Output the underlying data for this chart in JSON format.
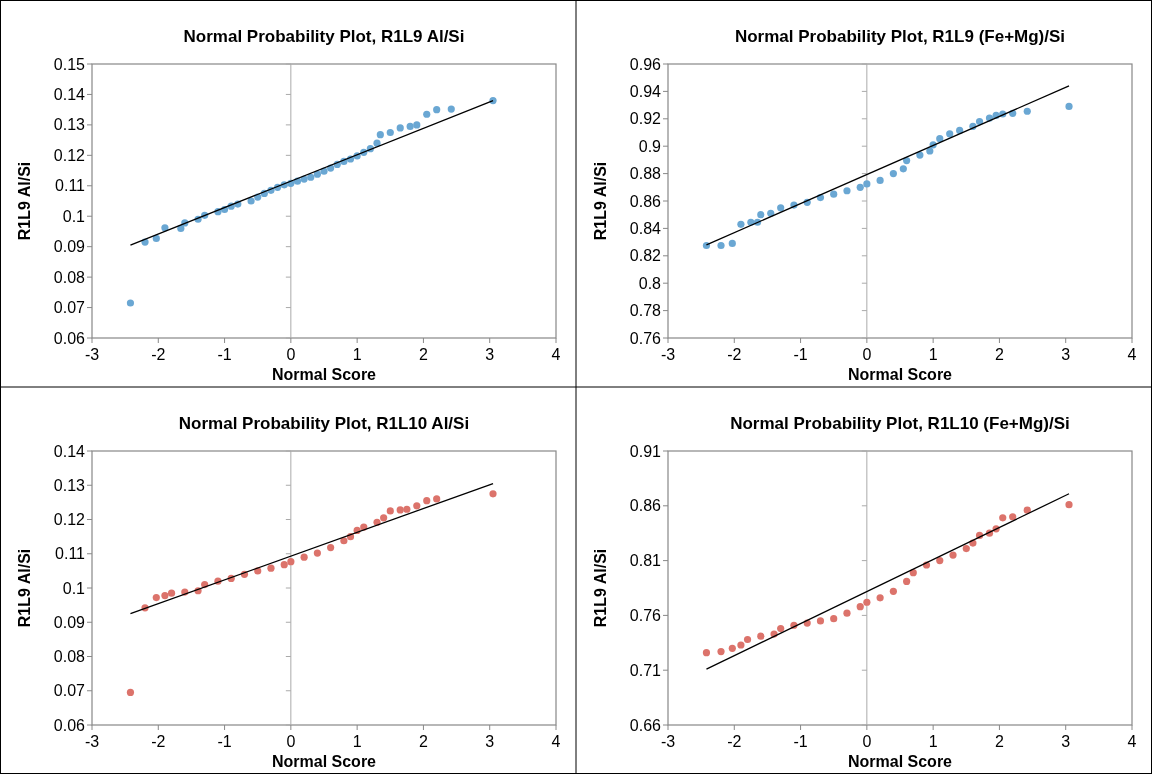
{
  "chart_data": [
    {
      "type": "scatter",
      "title": "Normal Probability Plot, R1L9 Al/Si",
      "xlabel": "Normal Score",
      "ylabel": "R1L9 Al/Si",
      "xlim": [
        -3,
        4
      ],
      "xticks": [
        -3,
        -2,
        -1,
        0,
        1,
        2,
        3,
        4
      ],
      "ylim": [
        0.06,
        0.15
      ],
      "yticks": [
        0.06,
        0.07,
        0.08,
        0.09,
        0.1,
        0.11,
        0.12,
        0.13,
        0.14,
        0.15
      ],
      "series": [
        {
          "type": "scatter",
          "marker": "circle",
          "color": "#6aa7d3",
          "x": [
            -2.42,
            -2.2,
            -2.03,
            -1.9,
            -1.66,
            -1.6,
            -1.4,
            -1.3,
            -1.1,
            -1.0,
            -0.9,
            -0.8,
            -0.6,
            -0.5,
            -0.4,
            -0.3,
            -0.2,
            -0.1,
            0,
            0.1,
            0.2,
            0.3,
            0.4,
            0.5,
            0.6,
            0.7,
            0.8,
            0.9,
            1.0,
            1.1,
            1.2,
            1.3,
            1.35,
            1.5,
            1.65,
            1.8,
            1.9,
            2.05,
            2.2,
            2.42,
            3.05
          ],
          "values": [
            0.0715,
            0.0915,
            0.0927,
            0.0962,
            0.096,
            0.0978,
            0.099,
            0.1003,
            0.1015,
            0.1022,
            0.1033,
            0.104,
            0.105,
            0.1063,
            0.1075,
            0.1085,
            0.1095,
            0.1103,
            0.1108,
            0.1115,
            0.1122,
            0.1128,
            0.1138,
            0.1148,
            0.1158,
            0.117,
            0.118,
            0.1188,
            0.1198,
            0.121,
            0.1222,
            0.124,
            0.1268,
            0.1275,
            0.129,
            0.1295,
            0.13,
            0.1335,
            0.135,
            0.1352,
            0.138
          ]
        },
        {
          "type": "line",
          "color": "#000000",
          "x": [
            -2.42,
            3.05
          ],
          "values": [
            0.0905,
            0.138
          ]
        }
      ]
    },
    {
      "type": "scatter",
      "title": "Normal Probability Plot, R1L9 (Fe+Mg)/Si",
      "xlabel": "Normal Score",
      "ylabel": "R1L9 Al/Si",
      "xlim": [
        -3,
        4
      ],
      "xticks": [
        -3,
        -2,
        -1,
        0,
        1,
        2,
        3,
        4
      ],
      "ylim": [
        0.76,
        0.96
      ],
      "yticks": [
        0.76,
        0.78,
        0.8,
        0.82,
        0.84,
        0.86,
        0.88,
        0.9,
        0.92,
        0.94,
        0.96
      ],
      "series": [
        {
          "type": "scatter",
          "marker": "circle",
          "color": "#6aa7d3",
          "x": [
            -2.42,
            -2.2,
            -2.03,
            -1.9,
            -1.75,
            -1.65,
            -1.6,
            -1.45,
            -1.3,
            -1.1,
            -0.9,
            -0.7,
            -0.5,
            -0.3,
            -0.1,
            0,
            0.2,
            0.4,
            0.55,
            0.6,
            0.8,
            0.95,
            1.0,
            1.1,
            1.25,
            1.4,
            1.6,
            1.7,
            1.85,
            1.95,
            2.05,
            2.2,
            2.42,
            3.05
          ],
          "values": [
            0.8275,
            0.8275,
            0.829,
            0.843,
            0.8445,
            0.8445,
            0.85,
            0.851,
            0.855,
            0.857,
            0.859,
            0.8625,
            0.865,
            0.8675,
            0.87,
            0.8725,
            0.875,
            0.88,
            0.8835,
            0.8895,
            0.8935,
            0.8965,
            0.901,
            0.9055,
            0.909,
            0.9115,
            0.9145,
            0.918,
            0.9205,
            0.9225,
            0.9235,
            0.924,
            0.9255,
            0.929
          ]
        },
        {
          "type": "line",
          "color": "#000000",
          "x": [
            -2.42,
            3.05
          ],
          "values": [
            0.828,
            0.944
          ]
        }
      ]
    },
    {
      "type": "scatter",
      "title": "Normal Probability Plot, R1L10 Al/Si",
      "xlabel": "Normal Score",
      "ylabel": "R1L9 Al/Si",
      "xlim": [
        -3,
        4
      ],
      "xticks": [
        -3,
        -2,
        -1,
        0,
        1,
        2,
        3,
        4
      ],
      "ylim": [
        0.06,
        0.14
      ],
      "yticks": [
        0.06,
        0.07,
        0.08,
        0.09,
        0.1,
        0.11,
        0.12,
        0.13,
        0.14
      ],
      "series": [
        {
          "type": "scatter",
          "marker": "circle",
          "color": "#dc736b",
          "x": [
            -2.42,
            -2.2,
            -2.03,
            -1.9,
            -1.8,
            -1.6,
            -1.4,
            -1.3,
            -1.1,
            -0.9,
            -0.7,
            -0.5,
            -0.3,
            -0.1,
            0,
            0.2,
            0.4,
            0.6,
            0.8,
            0.9,
            1.0,
            1.1,
            1.3,
            1.4,
            1.5,
            1.65,
            1.75,
            1.9,
            2.05,
            2.2,
            3.05
          ],
          "values": [
            0.0695,
            0.0942,
            0.0972,
            0.0978,
            0.0985,
            0.0988,
            0.0992,
            0.101,
            0.102,
            0.1028,
            0.104,
            0.105,
            0.1058,
            0.1068,
            0.1077,
            0.109,
            0.1102,
            0.1118,
            0.1138,
            0.115,
            0.1168,
            0.1178,
            0.1192,
            0.1205,
            0.1225,
            0.1228,
            0.123,
            0.124,
            0.1255,
            0.126,
            0.1275
          ]
        },
        {
          "type": "line",
          "color": "#000000",
          "x": [
            -2.42,
            3.05
          ],
          "values": [
            0.0925,
            0.1305
          ]
        }
      ]
    },
    {
      "type": "scatter",
      "title": "Normal Probability Plot, R1L10 (Fe+Mg)/Si",
      "xlabel": "Normal Score",
      "ylabel": "R1L9 Al/Si",
      "xlim": [
        -3,
        4
      ],
      "xticks": [
        -3,
        -2,
        -1,
        0,
        1,
        2,
        3,
        4
      ],
      "ylim": [
        0.66,
        0.91
      ],
      "yticks": [
        0.66,
        0.71,
        0.76,
        0.81,
        0.86,
        0.91
      ],
      "series": [
        {
          "type": "scatter",
          "marker": "circle",
          "color": "#dc736b",
          "x": [
            -2.42,
            -2.2,
            -2.03,
            -1.9,
            -1.8,
            -1.6,
            -1.4,
            -1.3,
            -1.1,
            -0.9,
            -0.7,
            -0.5,
            -0.3,
            -0.1,
            0,
            0.2,
            0.4,
            0.6,
            0.7,
            0.9,
            1.1,
            1.3,
            1.5,
            1.6,
            1.7,
            1.85,
            1.95,
            2.05,
            2.2,
            2.42,
            3.05
          ],
          "values": [
            0.726,
            0.727,
            0.73,
            0.733,
            0.738,
            0.741,
            0.743,
            0.748,
            0.751,
            0.753,
            0.755,
            0.757,
            0.762,
            0.768,
            0.772,
            0.776,
            0.782,
            0.791,
            0.799,
            0.806,
            0.81,
            0.815,
            0.821,
            0.826,
            0.833,
            0.835,
            0.839,
            0.849,
            0.85,
            0.856,
            0.861
          ]
        },
        {
          "type": "line",
          "color": "#000000",
          "x": [
            -2.42,
            3.05
          ],
          "values": [
            0.711,
            0.871
          ]
        }
      ]
    }
  ]
}
